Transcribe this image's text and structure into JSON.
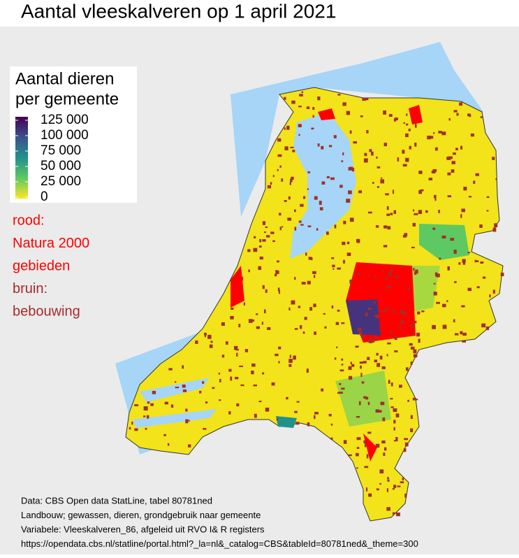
{
  "title": "Aantal vleeskalveren op 1 april 2021",
  "legend": {
    "title_lines": [
      "Aantal dieren",
      "per gemeente"
    ],
    "lim": [
      0,
      125000
    ],
    "ticks": [
      {
        "value": 125000,
        "label": "125 000"
      },
      {
        "value": 100000,
        "label": "100 000"
      },
      {
        "value": 75000,
        "label": "75 000"
      },
      {
        "value": 50000,
        "label": "50 000"
      },
      {
        "value": 25000,
        "label": "25 000"
      },
      0
    ],
    "colors": [
      "#fde725",
      "#5ec962",
      "#21918c",
      "#3b528b",
      "#440154"
    ]
  },
  "annotations": [
    {
      "text": "rood:",
      "color": "#ff0000"
    },
    {
      "text": "Natura 2000",
      "color": "#ff0000"
    },
    {
      "text": "gebieden",
      "color": "#ff0000"
    },
    {
      "text": "bruin:",
      "color": "#a52a2a"
    },
    {
      "text": "bebouwing",
      "color": "#a52a2a"
    }
  ],
  "source": [
    "Data: CBS Open data StatLine, tabel  80781ned",
    "Landbouw; gewassen, dieren, grondgebruik naar gemeente",
    "Variabele: Vleeskalveren_86, afgeleid uit RVO I& R registers",
    "https://opendata.cbs.nl/statline/portal.html?_la=nl&_catalog=CBS&tableId=80781ned&_theme=300"
  ]
}
